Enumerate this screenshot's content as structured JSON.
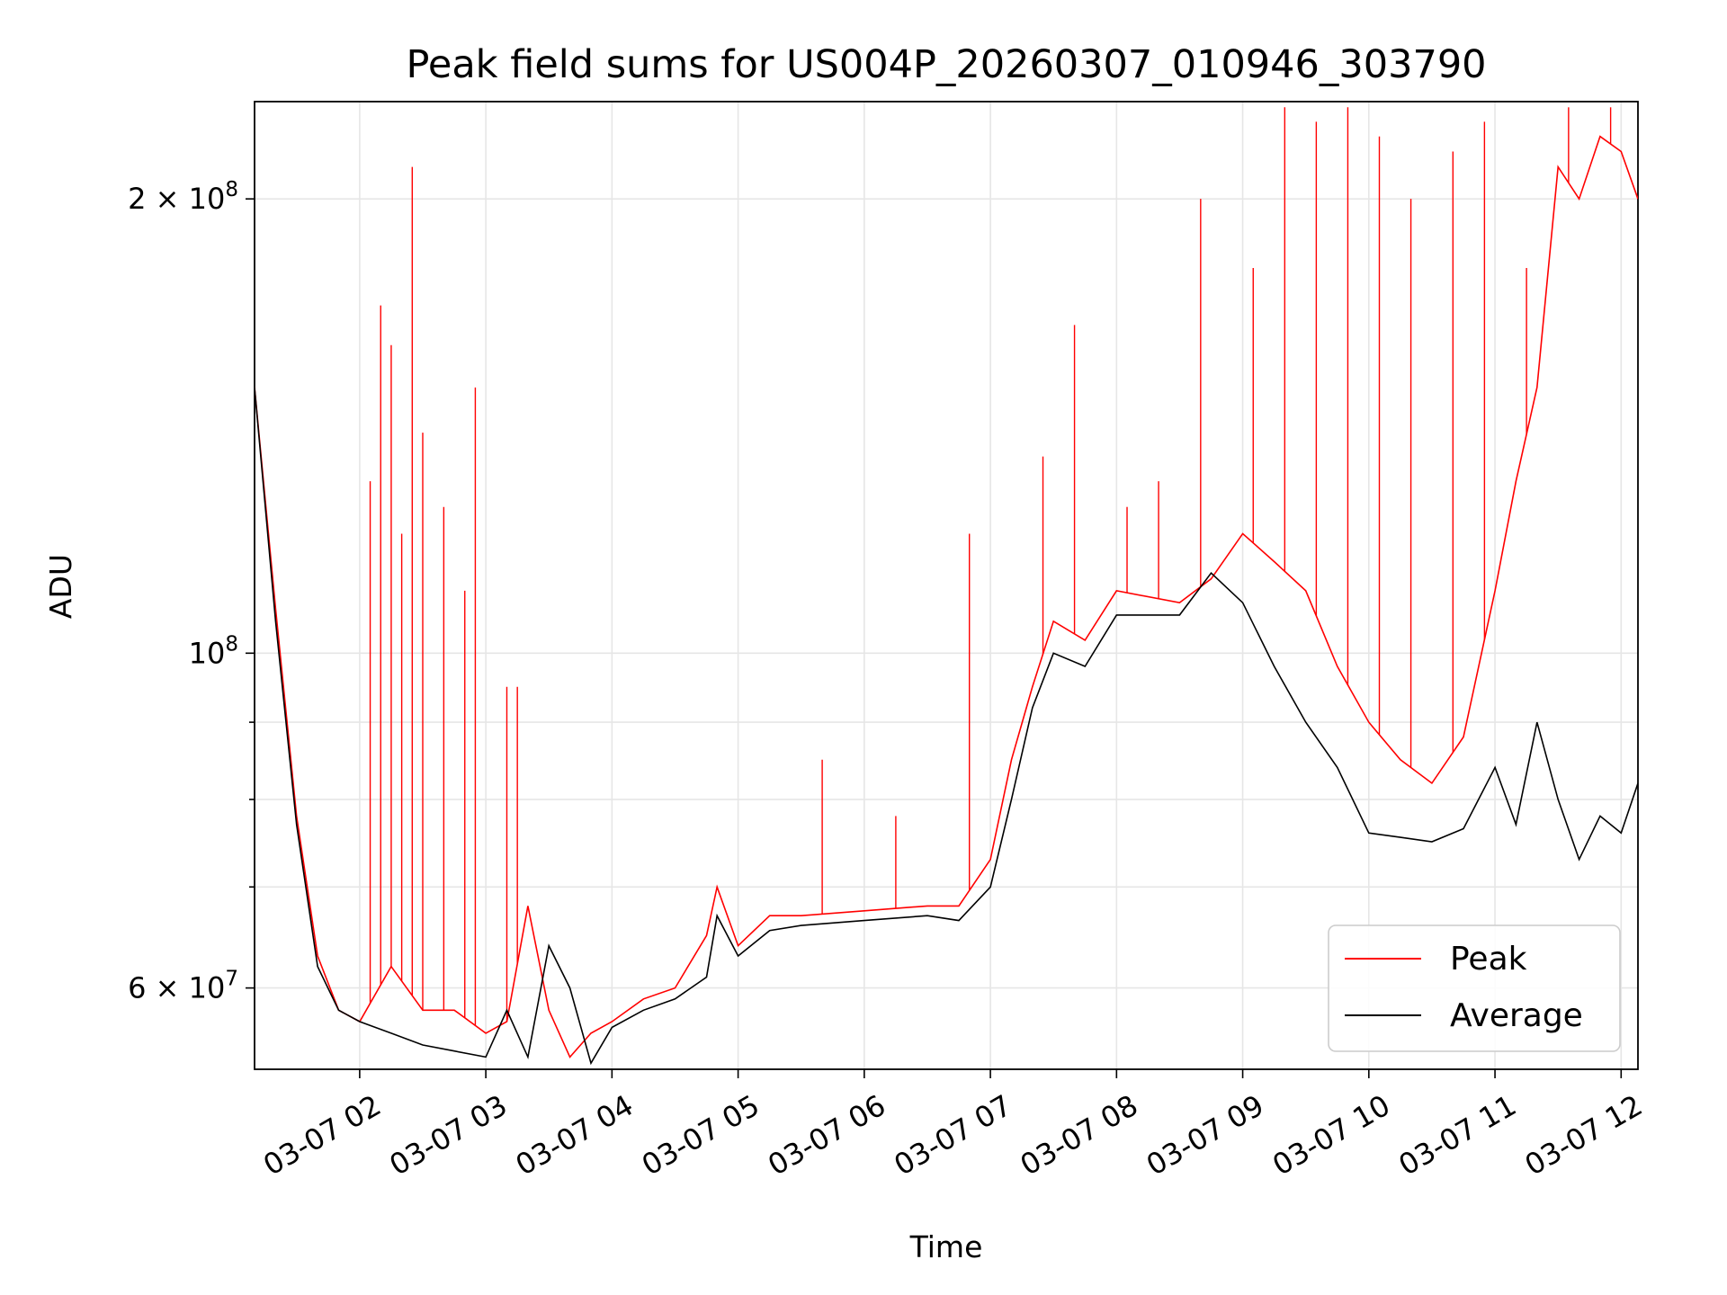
{
  "chart_data": {
    "type": "line",
    "title": "Peak field sums for US004P_20260307_010946_303790",
    "xlabel": "Time",
    "ylabel": "ADU",
    "y_scale": "log",
    "ylim": [
      53000000,
      232000000
    ],
    "xlim": [
      "03-07 01:10",
      "03-07 12:08"
    ],
    "grid": true,
    "legend_position": "lower-right",
    "x_ticks": [
      "03-07 02",
      "03-07 03",
      "03-07 04",
      "03-07 05",
      "03-07 06",
      "03-07 07",
      "03-07 08",
      "03-07 09",
      "03-07 10",
      "03-07 11",
      "03-07 12"
    ],
    "y_tick_labels": [
      {
        "value": 60000000,
        "mantissa": "6",
        "exponent": "7"
      },
      {
        "value": 100000000,
        "mantissa": "",
        "exponent": "8"
      },
      {
        "value": 200000000,
        "mantissa": "2",
        "exponent": "8"
      }
    ],
    "y_minor_ticks": [
      70000000,
      80000000,
      90000000
    ],
    "x": [
      "03-07 01:10",
      "03-07 01:20",
      "03-07 01:30",
      "03-07 01:40",
      "03-07 01:50",
      "03-07 02:00",
      "03-07 02:15",
      "03-07 02:30",
      "03-07 02:45",
      "03-07 03:00",
      "03-07 03:10",
      "03-07 03:20",
      "03-07 03:30",
      "03-07 03:40",
      "03-07 03:50",
      "03-07 04:00",
      "03-07 04:15",
      "03-07 04:30",
      "03-07 04:45",
      "03-07 04:50",
      "03-07 05:00",
      "03-07 05:15",
      "03-07 05:30",
      "03-07 06:00",
      "03-07 06:30",
      "03-07 06:45",
      "03-07 07:00",
      "03-07 07:10",
      "03-07 07:20",
      "03-07 07:30",
      "03-07 07:45",
      "03-07 08:00",
      "03-07 08:30",
      "03-07 08:45",
      "03-07 09:00",
      "03-07 09:15",
      "03-07 09:30",
      "03-07 09:45",
      "03-07 10:00",
      "03-07 10:15",
      "03-07 10:30",
      "03-07 10:45",
      "03-07 11:00",
      "03-07 11:10",
      "03-07 11:20",
      "03-07 11:30",
      "03-07 11:40",
      "03-07 11:50",
      "03-07 12:00",
      "03-07 12:08"
    ],
    "series": [
      {
        "name": "Peak",
        "color": "#ff0000",
        "values": [
          150000000,
          107000000,
          78000000,
          63000000,
          58000000,
          57000000,
          62000000,
          58000000,
          58000000,
          56000000,
          57000000,
          68000000,
          58000000,
          54000000,
          56000000,
          57000000,
          59000000,
          60000000,
          65000000,
          70000000,
          64000000,
          67000000,
          67000000,
          67500000,
          68000000,
          68000000,
          73000000,
          85000000,
          95000000,
          105000000,
          102000000,
          110000000,
          108000000,
          112000000,
          120000000,
          115000000,
          110000000,
          98000000,
          90000000,
          85000000,
          82000000,
          88000000,
          110000000,
          130000000,
          150000000,
          210000000,
          200000000,
          220000000,
          215000000,
          200000000
        ],
        "spikes": [
          [
            "03-07 02:05",
            130000000
          ],
          [
            "03-07 02:10",
            170000000
          ],
          [
            "03-07 02:15",
            160000000
          ],
          [
            "03-07 02:20",
            120000000
          ],
          [
            "03-07 02:25",
            210000000
          ],
          [
            "03-07 02:30",
            140000000
          ],
          [
            "03-07 02:40",
            125000000
          ],
          [
            "03-07 02:50",
            110000000
          ],
          [
            "03-07 02:55",
            150000000
          ],
          [
            "03-07 03:10",
            95000000
          ],
          [
            "03-07 03:15",
            95000000
          ],
          [
            "03-07 05:40",
            85000000
          ],
          [
            "03-07 06:15",
            78000000
          ],
          [
            "03-07 06:50",
            120000000
          ],
          [
            "03-07 07:25",
            135000000
          ],
          [
            "03-07 07:40",
            165000000
          ],
          [
            "03-07 08:05",
            125000000
          ],
          [
            "03-07 08:20",
            130000000
          ],
          [
            "03-07 08:40",
            200000000
          ],
          [
            "03-07 09:05",
            180000000
          ],
          [
            "03-07 09:20",
            230000000
          ],
          [
            "03-07 09:35",
            225000000
          ],
          [
            "03-07 09:50",
            230000000
          ],
          [
            "03-07 10:05",
            220000000
          ],
          [
            "03-07 10:20",
            200000000
          ],
          [
            "03-07 10:40",
            215000000
          ],
          [
            "03-07 10:55",
            225000000
          ],
          [
            "03-07 11:15",
            180000000
          ],
          [
            "03-07 11:35",
            230000000
          ],
          [
            "03-07 11:55",
            230000000
          ]
        ]
      },
      {
        "name": "Average",
        "color": "#000000",
        "values": [
          150000000,
          105000000,
          77000000,
          62000000,
          58000000,
          57000000,
          56000000,
          55000000,
          54500000,
          54000000,
          58000000,
          54000000,
          64000000,
          60000000,
          53500000,
          56500000,
          58000000,
          59000000,
          61000000,
          67000000,
          63000000,
          65500000,
          66000000,
          66500000,
          67000000,
          66500000,
          70000000,
          80000000,
          92000000,
          100000000,
          98000000,
          106000000,
          106000000,
          113000000,
          108000000,
          98000000,
          90000000,
          84000000,
          76000000,
          75500000,
          75000000,
          76500000,
          84000000,
          77000000,
          90000000,
          80000000,
          73000000,
          78000000,
          76000000,
          82000000
        ]
      }
    ]
  }
}
